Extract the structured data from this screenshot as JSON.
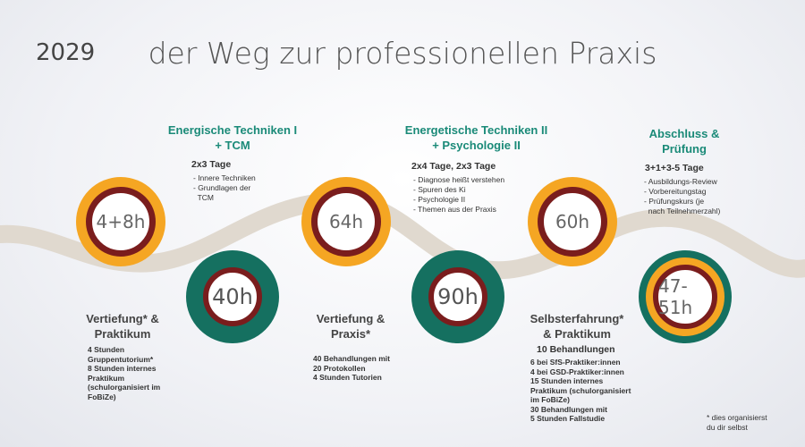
{
  "year": "2029",
  "title": "der Weg zur professionellen Praxis",
  "milestones": {
    "m1": "4+8h",
    "m2": "40h",
    "m3": "64h",
    "m4": "90h",
    "m5": "60h",
    "m6": "47-51h"
  },
  "top_sections": [
    {
      "heading_line1": "Energische Techniken I",
      "heading_line2": "+ TCM",
      "duration": "2x3 Tage",
      "items": [
        "- Innere Techniken",
        "- Grundlagen der",
        "  TCM"
      ]
    },
    {
      "heading_line1": "Energetische Techniken II",
      "heading_line2": "+ Psychologie II",
      "duration": "2x4 Tage, 2x3 Tage",
      "items": [
        "- Diagnose heißt verstehen",
        "- Spuren des Ki",
        "- Psychologie II",
        "- Themen aus der Praxis"
      ]
    },
    {
      "heading_line1": "Abschluss &",
      "heading_line2": "Prüfung",
      "duration": "3+1+3-5 Tage",
      "items": [
        "- Ausbildungs-Review",
        "- Vorbereitungstag",
        "- Prüfungskurs (je",
        "  nach Teilnehmerzahl)"
      ]
    }
  ],
  "bottom_sections": [
    {
      "heading_line1": "Vertiefung* &",
      "heading_line2": "Praktikum",
      "text": "4 Stunden\nGruppentutorium*\n8 Stunden internes\nPraktikum\n(schulorganisiert im\nFoBiZe)"
    },
    {
      "heading_line1": "Vertiefung &",
      "heading_line2": "Praxis*",
      "text": "40 Behandlungen mit\n20 Protokollen\n4 Stunden Tutorien"
    },
    {
      "heading_line1": "Selbsterfahrung*",
      "heading_line2": "& Praktikum",
      "subhead": "10 Behandlungen",
      "text": "6 bei SfS-Praktiker:innen\n4 bei GSD-Praktiker:innen\n15 Stunden internes\nPraktikum (schulorganisiert\nim FoBiZe)\n30 Behandlungen mit\n5 Stunden Fallstudie"
    }
  ],
  "footnote": "* dies organisierst\ndu dir selbst",
  "colors": {
    "road": "#e0d9cf",
    "orange": "#f5a623",
    "teal": "#157060",
    "maroon": "#7a1d1d",
    "heading": "#1a8a78"
  }
}
